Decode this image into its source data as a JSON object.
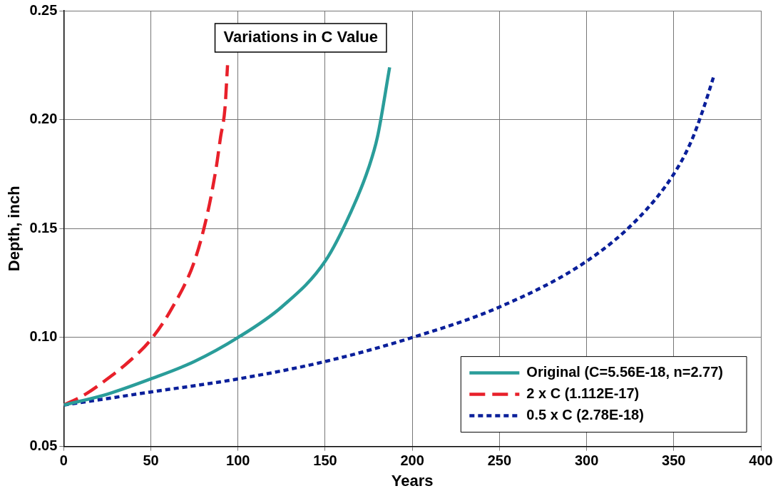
{
  "chart_data": {
    "type": "line",
    "title": "Variations in C Value",
    "xlabel": "Years",
    "ylabel": "Depth, inch",
    "xlim": [
      0,
      400
    ],
    "xticks": [
      0,
      50,
      100,
      150,
      200,
      250,
      300,
      350,
      400
    ],
    "ylim": [
      0.05,
      0.25
    ],
    "yticks": [
      {
        "value": 0.05,
        "label": "0.05"
      },
      {
        "value": 0.1,
        "label": "0.10"
      },
      {
        "value": 0.15,
        "label": "0.15"
      },
      {
        "value": 0.2,
        "label": "0.20"
      },
      {
        "value": 0.25,
        "label": "0.25"
      }
    ],
    "grid": true,
    "legend": "bottom right",
    "marker": "none",
    "series": [
      {
        "name": "Original (C=5.56E-18, n=2.77)",
        "color": "#2a9d9a",
        "line_style": "solid",
        "x": [
          0,
          25,
          50,
          75,
          100,
          125,
          150,
          165,
          175,
          180,
          187
        ],
        "values": [
          0.069,
          0.074,
          0.081,
          0.089,
          0.1,
          0.114,
          0.135,
          0.158,
          0.178,
          0.192,
          0.224
        ]
      },
      {
        "name": "2 x C (1.112E-17)",
        "color": "#e8202a",
        "line_style": "dashed",
        "x": [
          0,
          12.5,
          25,
          37.5,
          50,
          62.5,
          75,
          82.5,
          87.5,
          90,
          92.5,
          94
        ],
        "values": [
          0.069,
          0.074,
          0.081,
          0.089,
          0.099,
          0.114,
          0.135,
          0.157,
          0.178,
          0.192,
          0.205,
          0.225
        ]
      },
      {
        "name": "0.5 x C (2.78E-18)",
        "color": "#0a1f9a",
        "line_style": "dotted",
        "x": [
          0,
          50,
          100,
          150,
          200,
          250,
          300,
          330,
          350,
          360,
          367,
          373
        ],
        "values": [
          0.069,
          0.075,
          0.081,
          0.089,
          0.1,
          0.114,
          0.135,
          0.155,
          0.175,
          0.19,
          0.205,
          0.22
        ]
      }
    ]
  }
}
